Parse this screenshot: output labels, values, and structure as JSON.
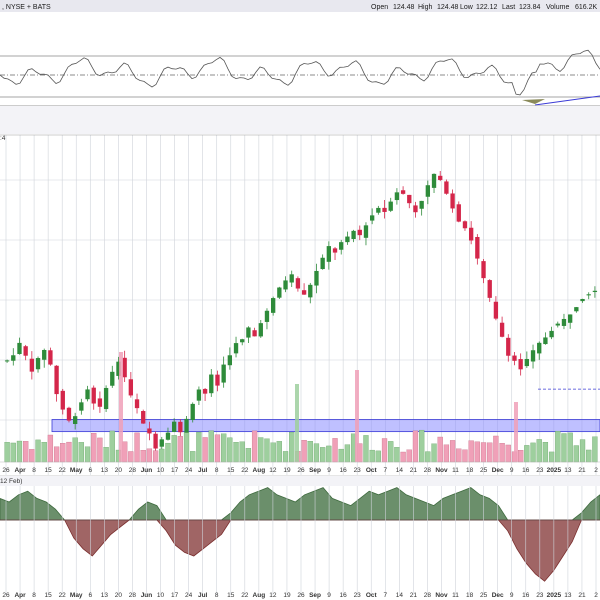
{
  "header": {
    "exchange": ", NYSE + BATS",
    "open_label": "Open",
    "open": "124.48",
    "high_label": "High",
    "high": "124.48",
    "low_label": "Low",
    "low": "122.12",
    "last_label": "Last",
    "last": "123.84",
    "volume_label": "Volume",
    "volume": "616.2K"
  },
  "panel_labels": {
    "price_fragment": ":4",
    "macd_fragment": "12 Feb)"
  },
  "colors": {
    "up": "#2e8b3a",
    "down": "#d4264a",
    "vol_up": "#9ecf9e",
    "vol_down": "#f0a0b8",
    "support_fill": "#8a8cff",
    "support_stroke": "#3b3bd6",
    "macd_pos": "#3f6b3f",
    "macd_neg": "#7a2e2e",
    "header_bg": "#e8e8ef",
    "panel_bg": "#f3f3f7"
  },
  "chart_data": {
    "type": "candlestick",
    "x_labels": [
      "26",
      "Apr",
      "8",
      "15",
      "22",
      "May",
      "6",
      "13",
      "20",
      "28",
      "Jun",
      "10",
      "17",
      "24",
      "Jul",
      "8",
      "15",
      "22",
      "Aug",
      "12",
      "19",
      "26",
      "Sep",
      "9",
      "16",
      "23",
      "Oct",
      "7",
      "14",
      "21",
      "28",
      "Nov",
      "11",
      "18",
      "25",
      "Dec",
      "9",
      "16",
      "23",
      "2025",
      "13",
      "21",
      "2"
    ],
    "x_label_pos": [
      0,
      1,
      2,
      3,
      4,
      5,
      6,
      7,
      8,
      9,
      10,
      11,
      12,
      13,
      14,
      15,
      16,
      17,
      18,
      19,
      20,
      21,
      22,
      23,
      24,
      25,
      26,
      27,
      28,
      29,
      30,
      31,
      32,
      33,
      34,
      35,
      36,
      37,
      38,
      39,
      40,
      41,
      42
    ],
    "bold_labels": [
      "Apr",
      "May",
      "Jun",
      "Jul",
      "Aug",
      "Sep",
      "Oct",
      "Nov",
      "Dec",
      "2025"
    ],
    "price_path": [
      70,
      72,
      74,
      71,
      68,
      70,
      73,
      69,
      62,
      58,
      55,
      57,
      60,
      63,
      60,
      58,
      64,
      67,
      70,
      66,
      61,
      58,
      54,
      52,
      49,
      51,
      53,
      55,
      52,
      56,
      60,
      63,
      62,
      66,
      64,
      69,
      72,
      74,
      75,
      78,
      76,
      80,
      82,
      85,
      88,
      90,
      91,
      88,
      86,
      89,
      92,
      95,
      98,
      97,
      99,
      100,
      102,
      101,
      104,
      106,
      108,
      107,
      110,
      112,
      111,
      109,
      107,
      110,
      113,
      116,
      114,
      112,
      108,
      105,
      103,
      100,
      95,
      90,
      85,
      80,
      76,
      72,
      70,
      68,
      70,
      72,
      74,
      76,
      78,
      79,
      80,
      82,
      84,
      86,
      87,
      88
    ],
    "support_zone": [
      52.5,
      55.5
    ],
    "dashed_support": 63,
    "volume_spikes": [
      21,
      86,
      107,
      132
    ],
    "macd_values": [
      6,
      5,
      7,
      8,
      6,
      5,
      3,
      0,
      -5,
      -8,
      -10,
      -7,
      -4,
      -2,
      0,
      3,
      5,
      4,
      -3,
      -7,
      -9,
      -10,
      -8,
      -6,
      -4,
      2,
      5,
      7,
      8,
      9,
      7,
      6,
      5,
      7,
      8,
      9,
      6,
      5,
      4,
      6,
      8,
      7,
      8,
      9,
      7,
      6,
      5,
      4,
      6,
      7,
      8,
      9,
      7,
      6,
      4,
      -3,
      -8,
      -12,
      -15,
      -17,
      -14,
      -10,
      -6,
      2,
      5,
      7
    ]
  }
}
